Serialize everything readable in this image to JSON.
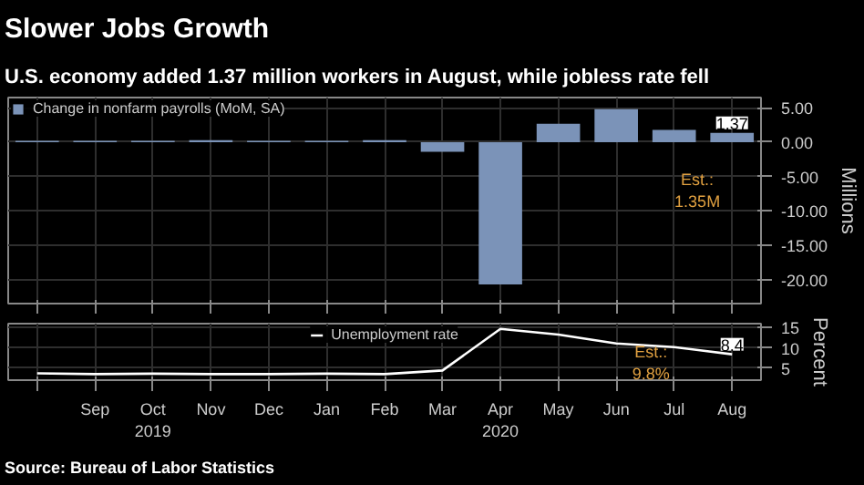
{
  "chart_data": [
    {
      "type": "bar",
      "title": "Slower Jobs Growth",
      "subtitle": "U.S. economy added 1.37 million workers in August, while jobless rate fell",
      "categories": [
        null,
        null,
        null,
        null,
        null,
        null,
        null,
        null,
        null,
        null,
        null,
        null,
        null
      ],
      "series": [
        {
          "name": "Change in nonfarm payrolls (MoM, SA)",
          "color": "#7b93b8",
          "values": [
            0.2,
            0.2,
            0.2,
            0.3,
            0.2,
            0.2,
            0.3,
            -1.4,
            -20.7,
            2.7,
            4.8,
            1.8,
            1.37
          ],
          "value_labels": [
            null,
            null,
            null,
            null,
            null,
            null,
            null,
            null,
            null,
            null,
            null,
            null,
            "1.37"
          ]
        }
      ],
      "ylim": [
        -23.5,
        6.5
      ],
      "yticks": [
        {
          "value": 5,
          "label": "5.00"
        },
        {
          "value": 0,
          "label": "0.00"
        },
        {
          "value": -5,
          "label": "-5.00"
        },
        {
          "value": -10,
          "label": "-10.00"
        },
        {
          "value": -15,
          "label": "-15.00"
        },
        {
          "value": -20,
          "label": "-20.00"
        }
      ],
      "ylabel": "Millions",
      "annotations": [
        "Est.:\n1.35M"
      ],
      "grid": true,
      "legend": "top left",
      "tick_labels": "y"
    },
    {
      "type": "line",
      "categories": [
        null,
        "Sep",
        "Oct\n2019",
        "Nov",
        "Dec",
        "Jan",
        "Feb",
        "Mar",
        "Apr\n2020",
        "May",
        "Jun",
        "Jul",
        "Aug"
      ],
      "series": [
        {
          "name": "Unemployment rate",
          "color": "#ffffff",
          "values": [
            3.7,
            3.5,
            3.6,
            3.5,
            3.5,
            3.6,
            3.5,
            4.4,
            14.7,
            13.3,
            11.1,
            10.2,
            8.4
          ],
          "value_labels": [
            null,
            null,
            null,
            null,
            null,
            null,
            null,
            null,
            null,
            null,
            null,
            null,
            "8.4"
          ]
        }
      ],
      "ylim": [
        2,
        16
      ],
      "yticks": [
        5,
        10,
        15
      ],
      "ylabel": "Percent",
      "annotations": [
        "Est.:\n9.8%",
        "Source: Bureau of Labor Statistics"
      ],
      "grid": true,
      "legend": "top"
    }
  ]
}
